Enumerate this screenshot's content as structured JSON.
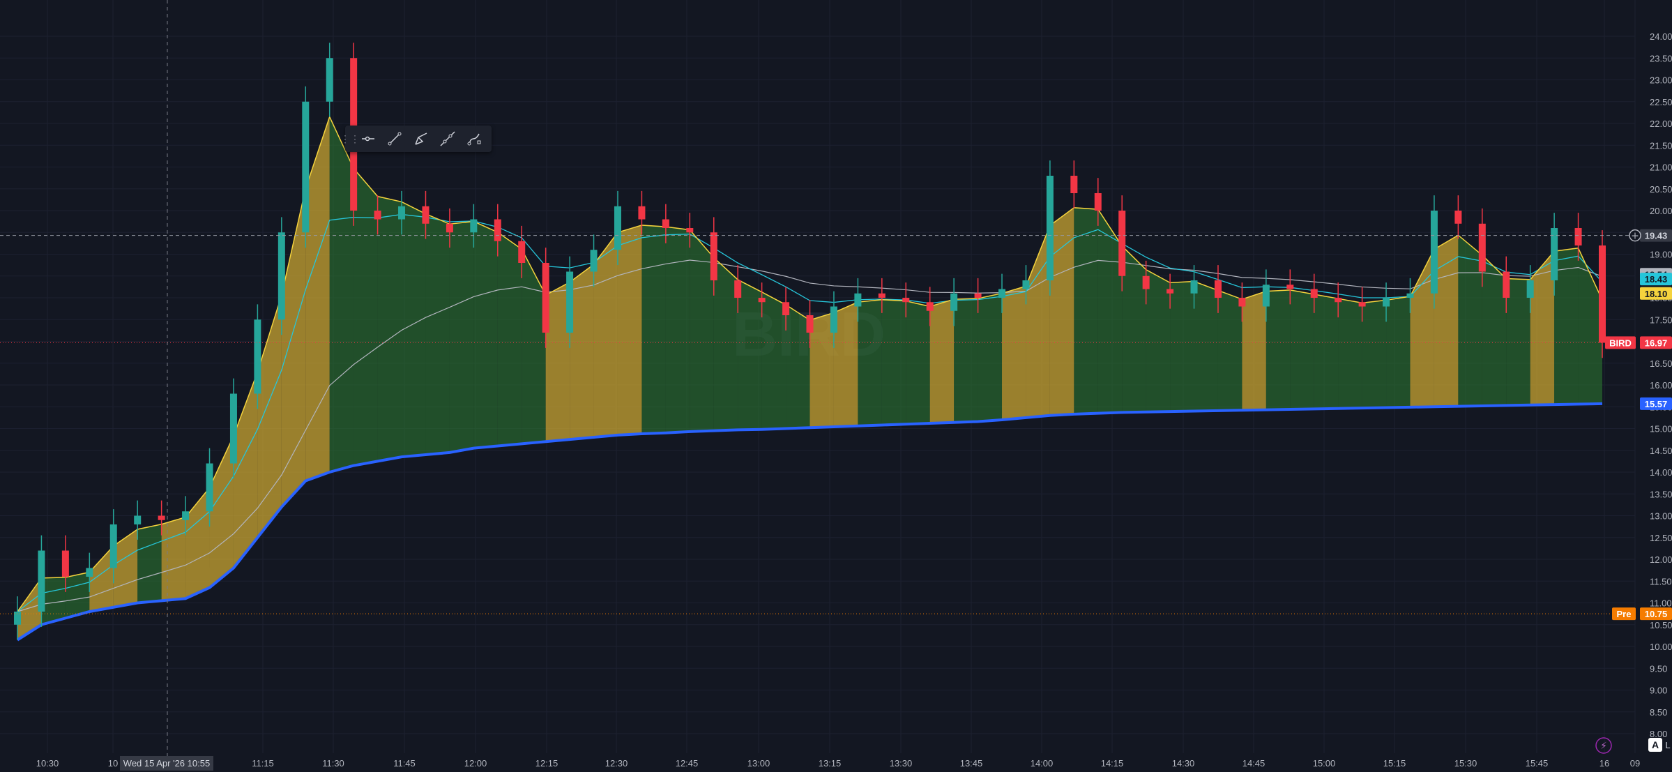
{
  "symbol": {
    "watermark": "BIRD",
    "tag": "BIRD",
    "last_price": 16.97
  },
  "price_axis": {
    "min": 8.0,
    "max": 24.0,
    "step": 0.5,
    "labels": [
      "24.00",
      "23.50",
      "23.00",
      "22.50",
      "22.00",
      "21.50",
      "21.00",
      "20.50",
      "20.00",
      "19.50",
      "19.00",
      "18.50",
      "18.00",
      "17.50",
      "17.00",
      "16.50",
      "16.00",
      "15.50",
      "15.00",
      "14.50",
      "14.00",
      "13.50",
      "13.00",
      "12.50",
      "12.00",
      "11.50",
      "11.00",
      "10.50",
      "10.00",
      "9.50",
      "9.00",
      "8.50",
      "8.00"
    ]
  },
  "time_axis": {
    "labels": [
      "10:30",
      "10",
      "11:15",
      "11:30",
      "11:45",
      "12:00",
      "12:15",
      "12:30",
      "12:45",
      "13:00",
      "13:15",
      "13:30",
      "13:45",
      "14:00",
      "14:15",
      "14:30",
      "14:45",
      "15:00",
      "15:15",
      "15:30",
      "15:45",
      "16",
      "09"
    ],
    "crosshair_date": "Wed 15 Apr '26   10:55"
  },
  "price_tags": [
    {
      "label": "19.43",
      "value": 19.43,
      "bg": "#363a45",
      "fg": "#d1d4dc"
    },
    {
      "label": "18.54",
      "value": 18.54,
      "bg": "#b2b5be",
      "fg": "#131722"
    },
    {
      "label": "18.43",
      "value": 18.43,
      "bg": "#26c6da",
      "fg": "#131722"
    },
    {
      "label": "18.10",
      "value": 18.1,
      "bg": "#f5d33d",
      "fg": "#131722"
    },
    {
      "label": "16.97",
      "value": 16.97,
      "bg": "#f23645",
      "fg": "#ffffff"
    },
    {
      "label": "15.57",
      "value": 15.57,
      "bg": "#2962ff",
      "fg": "#ffffff"
    },
    {
      "label": "10.75",
      "value": 10.75,
      "bg": "#f57c00",
      "fg": "#ffffff"
    }
  ],
  "premarket": {
    "label": "Pre",
    "value": 10.75
  },
  "horizontal_line": {
    "value": 19.43
  },
  "toolbar": {
    "tools": [
      "horizontal-ray-icon",
      "trend-line-icon",
      "brush-icon",
      "extended-line-icon",
      "path-icon"
    ]
  },
  "corner": {
    "auto_label": "A",
    "next_label": "L"
  },
  "colors": {
    "bg": "#131722",
    "up": "#26a69a",
    "down": "#f23645",
    "vwap": "#2962ff",
    "ema_fast": "#f5d33d",
    "ema_mid": "#26c6da",
    "sma": "#b2b5be",
    "fill_green": "#2e7d32",
    "fill_gold": "#c8a431"
  },
  "chart_data": {
    "type": "candlestick",
    "ylim": [
      8,
      24
    ],
    "x": [
      "10:25",
      "10:30",
      "10:35",
      "10:40",
      "10:45",
      "10:50",
      "10:55",
      "11:00",
      "11:05",
      "11:10",
      "11:15",
      "11:20",
      "11:25",
      "11:30",
      "11:35",
      "11:40",
      "11:45",
      "11:50",
      "11:55",
      "12:00",
      "12:05",
      "12:10",
      "12:15",
      "12:20",
      "12:25",
      "12:30",
      "12:35",
      "12:40",
      "12:45",
      "12:50",
      "12:55",
      "13:00",
      "13:05",
      "13:10",
      "13:15",
      "13:20",
      "13:25",
      "13:30",
      "13:35",
      "13:40",
      "13:45",
      "13:50",
      "13:55",
      "14:00",
      "14:05",
      "14:10",
      "14:15",
      "14:20",
      "14:25",
      "14:30",
      "14:35",
      "14:40",
      "14:45",
      "14:50",
      "14:55",
      "15:00",
      "15:05",
      "15:10",
      "15:15",
      "15:20",
      "15:25",
      "15:30",
      "15:35",
      "15:40",
      "15:45",
      "15:50",
      "15:55"
    ],
    "close": [
      10.8,
      12.2,
      11.6,
      11.8,
      12.8,
      13.0,
      12.9,
      13.1,
      14.2,
      15.8,
      17.5,
      19.5,
      22.5,
      23.5,
      20.0,
      19.8,
      20.1,
      19.7,
      19.5,
      19.8,
      19.3,
      18.8,
      17.2,
      18.6,
      19.1,
      20.1,
      19.8,
      19.6,
      19.5,
      18.4,
      18.0,
      17.9,
      17.6,
      17.2,
      17.8,
      18.1,
      18.0,
      17.9,
      17.7,
      18.1,
      18.0,
      18.2,
      18.4,
      20.8,
      20.4,
      20.0,
      18.5,
      18.2,
      18.1,
      18.4,
      18.0,
      17.8,
      18.3,
      18.2,
      18.0,
      17.9,
      17.8,
      18.0,
      18.1,
      20.0,
      19.7,
      18.6,
      18.0,
      18.4,
      19.6,
      19.2,
      16.97
    ],
    "vwap": [
      10.15,
      10.5,
      10.65,
      10.8,
      10.9,
      11.0,
      11.05,
      11.1,
      11.35,
      11.8,
      12.5,
      13.2,
      13.8,
      14.0,
      14.15,
      14.25,
      14.35,
      14.4,
      14.45,
      14.55,
      14.6,
      14.65,
      14.7,
      14.75,
      14.8,
      14.85,
      14.88,
      14.9,
      14.93,
      14.95,
      14.97,
      14.98,
      15.0,
      15.02,
      15.04,
      15.06,
      15.08,
      15.1,
      15.12,
      15.14,
      15.16,
      15.2,
      15.25,
      15.3,
      15.33,
      15.35,
      15.37,
      15.38,
      15.39,
      15.4,
      15.41,
      15.42,
      15.43,
      15.44,
      15.45,
      15.46,
      15.47,
      15.48,
      15.49,
      15.5,
      15.51,
      15.52,
      15.53,
      15.54,
      15.55,
      15.56,
      15.57
    ]
  }
}
